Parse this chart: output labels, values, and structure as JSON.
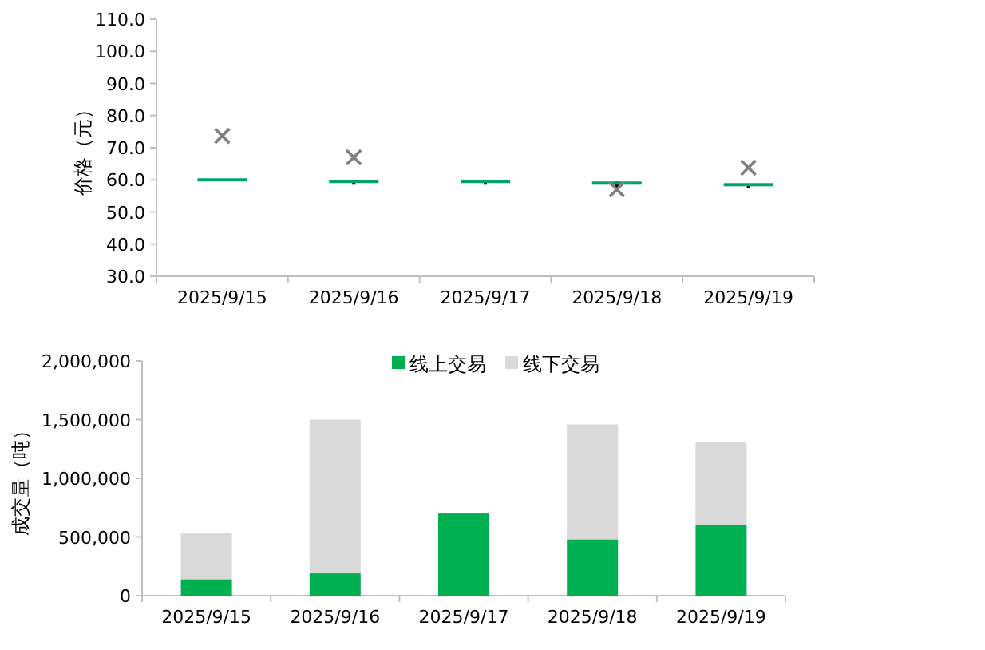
{
  "chart_data": [
    {
      "type": "candlestick",
      "ylabel": "价格（元）",
      "categories": [
        "2025/9/15",
        "2025/9/16",
        "2025/9/17",
        "2025/9/18",
        "2025/9/19"
      ],
      "ohlc": [
        [
          60,
          60,
          60,
          60
        ],
        [
          59.5,
          59.5,
          58.5,
          59.5
        ],
        [
          59.5,
          59.5,
          58.5,
          59.5
        ],
        [
          59,
          59.5,
          57.5,
          59
        ],
        [
          58.5,
          58.5,
          57.5,
          58.5
        ]
      ],
      "color": "#00a070",
      "series": [
        {
          "type": "scatter",
          "color": "#808080",
          "marker": "cross",
          "values": [
            73.7,
            67,
            null,
            57,
            63.8
          ]
        }
      ],
      "ylim": [
        30,
        110
      ],
      "yticks": [
        {
          "value": 30,
          "label": "30.0"
        },
        {
          "value": 40,
          "label": "40.0"
        },
        {
          "value": 50,
          "label": "50.0"
        },
        {
          "value": 60,
          "label": "60.0"
        },
        {
          "value": 70,
          "label": "70.0"
        },
        {
          "value": 80,
          "label": "80.0"
        },
        {
          "value": 90,
          "label": "90.0"
        },
        {
          "value": 100,
          "label": "100.0"
        },
        {
          "value": 110,
          "label": "110.0"
        }
      ],
      "grid": false,
      "legend": false
    },
    {
      "type": "bar",
      "stacked": true,
      "ylabel": "成交量（吨）",
      "categories": [
        "2025/9/15",
        "2025/9/16",
        "2025/9/17",
        "2025/9/18",
        "2025/9/19"
      ],
      "series": [
        {
          "name": "线上交易",
          "color": "#00b050",
          "values": [
            140000,
            190000,
            700000,
            480000,
            600000
          ]
        },
        {
          "name": "线下交易",
          "color": "#d9d9d9",
          "values": [
            390000,
            1310000,
            0,
            980000,
            710000
          ]
        }
      ],
      "ylim": [
        0,
        2000000
      ],
      "yticks": [
        {
          "value": 0,
          "label": "0"
        },
        {
          "value": 500000,
          "label": "500,000"
        },
        {
          "value": 1000000,
          "label": "1,000,000"
        },
        {
          "value": 1500000,
          "label": "1,500,000"
        },
        {
          "value": 2000000,
          "label": "2,000,000"
        }
      ],
      "grid": false,
      "legend": "top"
    }
  ]
}
